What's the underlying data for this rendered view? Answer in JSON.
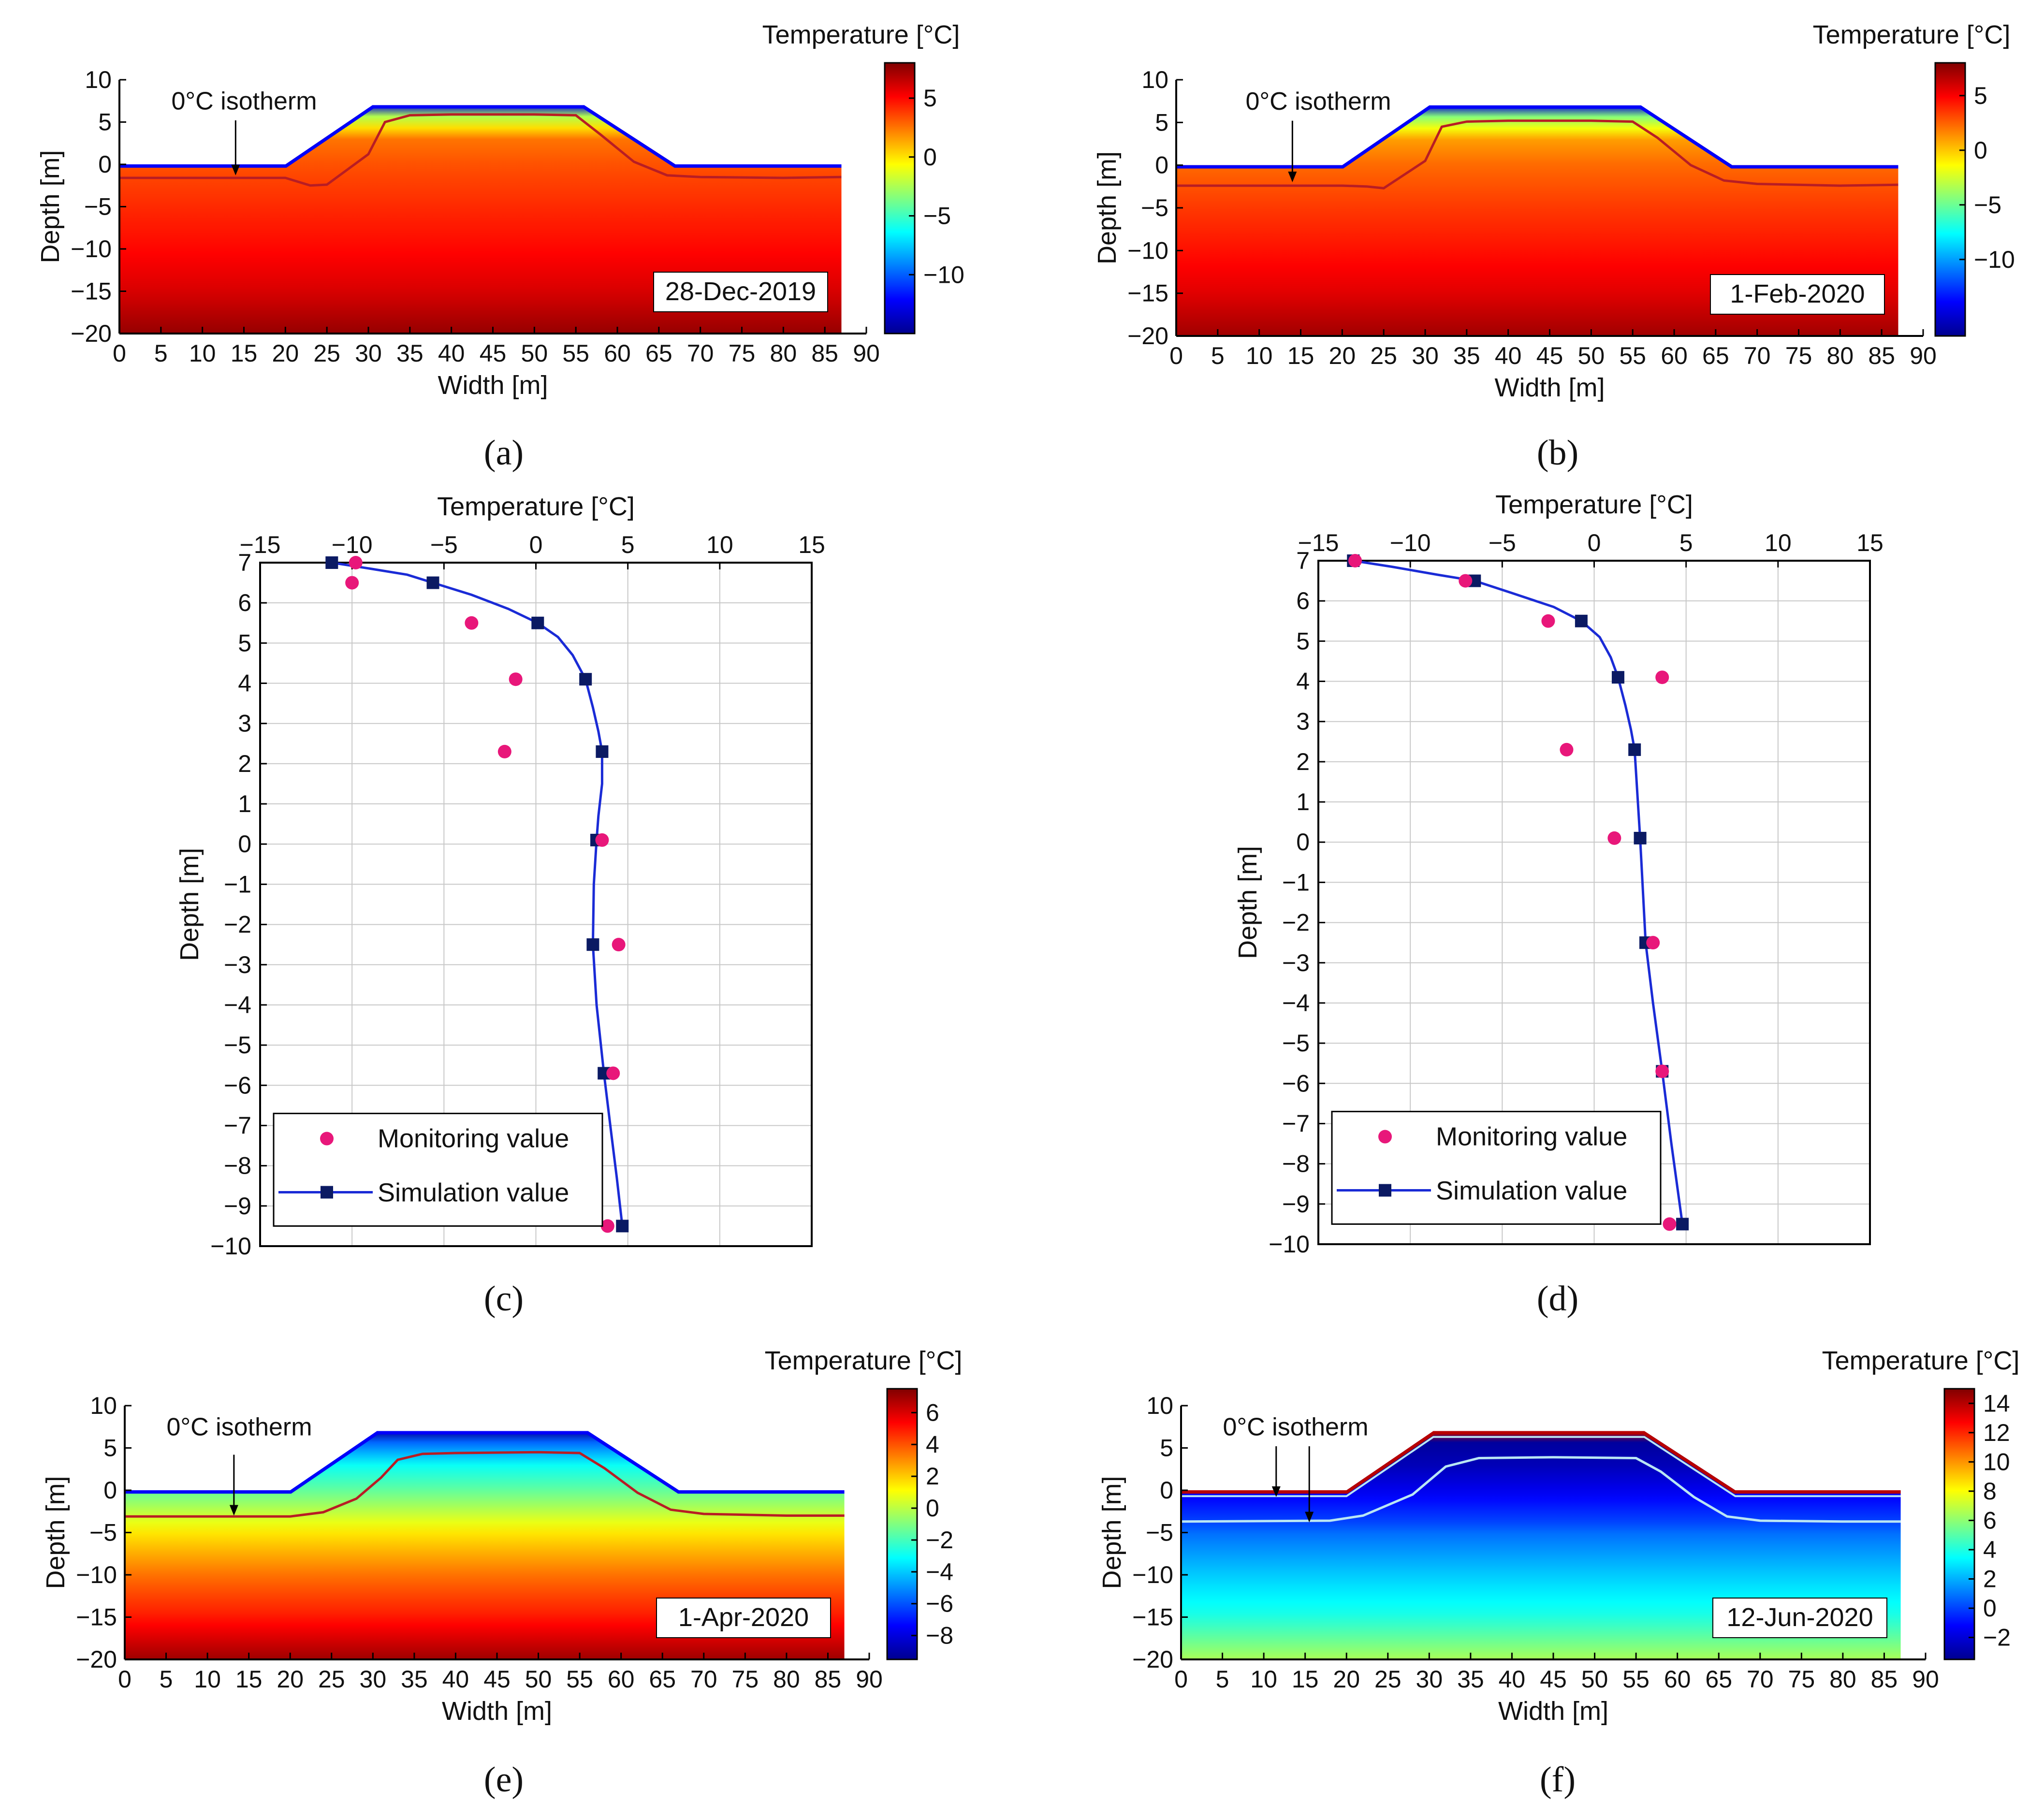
{
  "figure": {
    "panel_labels": [
      "(a)",
      "(b)",
      "(c)",
      "(d)",
      "(e)",
      "(f)"
    ]
  },
  "colors": {
    "monitoring": "#e8177a",
    "simulation_line": "#1a2bd6",
    "simulation_marker": "#0b1a63",
    "isotherm": "#b81d24",
    "isotherm_cold": "#b9e6f4",
    "grid": "#c8c8c8"
  },
  "chart_data": [
    {
      "panel": "a",
      "type": "heatmap",
      "title": "",
      "date_label": "28-Dec-2019",
      "xlabel": "Width [m]",
      "ylabel": "Depth [m]",
      "xlim": [
        0,
        90
      ],
      "ylim": [
        -20,
        10
      ],
      "xticks": [
        0,
        5,
        10,
        15,
        20,
        25,
        30,
        35,
        40,
        45,
        50,
        55,
        60,
        65,
        70,
        75,
        80,
        85,
        90
      ],
      "yticks": [
        10,
        5,
        0,
        -5,
        -10,
        -15,
        -20
      ],
      "colorbar": {
        "label": "Temperature [°C]",
        "min": -15,
        "max": 8,
        "ticks": [
          5,
          0,
          -5,
          -10
        ]
      },
      "annotation": "0°C isotherm",
      "embankment_profile": {
        "x": [
          0,
          20,
          30.5,
          56,
          67,
          87
        ],
        "y": [
          0,
          0,
          7,
          7,
          0,
          0
        ]
      },
      "isotherm": {
        "x": [
          0,
          20,
          23,
          25,
          30,
          32,
          35,
          40,
          50,
          55,
          58,
          62,
          66,
          70,
          80,
          87
        ],
        "y": [
          -1.6,
          -1.6,
          -2.5,
          -2.4,
          1.2,
          5,
          5.8,
          5.9,
          5.9,
          5.8,
          3.5,
          0.3,
          -1.3,
          -1.5,
          -1.6,
          -1.5
        ]
      },
      "temp_profile": {
        "depth": [
          7,
          6,
          3,
          0,
          -5,
          -10,
          -15,
          -20
        ],
        "temp": [
          -13,
          -3,
          2.5,
          3.3,
          4.2,
          5,
          6,
          7.5
        ]
      }
    },
    {
      "panel": "b",
      "type": "heatmap",
      "title": "",
      "date_label": "1-Feb-2020",
      "xlabel": "Width [m]",
      "ylabel": "Depth [m]",
      "xlim": [
        0,
        90
      ],
      "ylim": [
        -20,
        10
      ],
      "xticks": [
        0,
        5,
        10,
        15,
        20,
        25,
        30,
        35,
        40,
        45,
        50,
        55,
        60,
        65,
        70,
        75,
        80,
        85,
        90
      ],
      "yticks": [
        10,
        5,
        0,
        -5,
        -10,
        -15,
        -20
      ],
      "colorbar": {
        "label": "Temperature [°C]",
        "min": -17,
        "max": 8,
        "ticks": [
          5,
          0,
          -5,
          -10
        ]
      },
      "annotation": "0°C isotherm",
      "embankment_profile": {
        "x": [
          0,
          20,
          30.5,
          56,
          67,
          87
        ],
        "y": [
          0,
          0,
          7,
          7,
          0,
          0
        ]
      },
      "isotherm": {
        "x": [
          0,
          20,
          23,
          25,
          30,
          32,
          35,
          40,
          50,
          55,
          58,
          62,
          66,
          70,
          80,
          87
        ],
        "y": [
          -2.4,
          -2.4,
          -2.5,
          -2.7,
          0.5,
          4.5,
          5.1,
          5.2,
          5.2,
          5.1,
          3.2,
          0.0,
          -1.8,
          -2.2,
          -2.4,
          -2.3
        ]
      },
      "temp_profile": {
        "depth": [
          7,
          6,
          3,
          0,
          -5,
          -10,
          -15,
          -20
        ],
        "temp": [
          -15,
          -5,
          1,
          2.3,
          3.5,
          4.5,
          5.6,
          7.2
        ]
      }
    },
    {
      "panel": "c",
      "type": "line",
      "title": "",
      "xlabel": "Temperature [°C]",
      "ylabel": "Depth [m]",
      "xlim": [
        -15,
        15
      ],
      "ylim": [
        -10,
        7
      ],
      "xticks": [
        -15,
        -10,
        -5,
        0,
        5,
        10,
        15
      ],
      "yticks": [
        7,
        6,
        5,
        4,
        3,
        2,
        1,
        0,
        -1,
        -2,
        -3,
        -4,
        -5,
        -6,
        -7,
        -8,
        -9,
        -10
      ],
      "legend_position": "bottom-left",
      "series": [
        {
          "name": "Monitoring value",
          "kind": "scatter",
          "points": [
            [
              -9.8,
              7.0
            ],
            [
              -10.0,
              6.5
            ],
            [
              -3.5,
              5.5
            ],
            [
              -1.1,
              4.1
            ],
            [
              -1.7,
              2.3
            ],
            [
              3.6,
              0.1
            ],
            [
              4.5,
              -2.5
            ],
            [
              4.2,
              -5.7
            ],
            [
              3.9,
              -9.5
            ]
          ]
        },
        {
          "name": "Simulation value",
          "kind": "line-markers",
          "points": [
            [
              -11.1,
              7.0
            ],
            [
              -5.6,
              6.5
            ],
            [
              0.1,
              5.5
            ],
            [
              2.7,
              4.1
            ],
            [
              3.6,
              2.3
            ],
            [
              3.3,
              0.1
            ],
            [
              3.1,
              -2.5
            ],
            [
              3.7,
              -5.7
            ],
            [
              4.7,
              -9.5
            ]
          ],
          "curve": [
            [
              -11.1,
              7.0
            ],
            [
              -9.0,
              6.85
            ],
            [
              -7.0,
              6.7
            ],
            [
              -5.6,
              6.5
            ],
            [
              -3.5,
              6.2
            ],
            [
              -1.5,
              5.85
            ],
            [
              0.1,
              5.5
            ],
            [
              1.2,
              5.15
            ],
            [
              2.0,
              4.7
            ],
            [
              2.7,
              4.1
            ],
            [
              3.1,
              3.4
            ],
            [
              3.4,
              2.8
            ],
            [
              3.6,
              2.3
            ],
            [
              3.6,
              1.5
            ],
            [
              3.4,
              0.7
            ],
            [
              3.3,
              0.1
            ],
            [
              3.15,
              -1.0
            ],
            [
              3.1,
              -2.5
            ],
            [
              3.3,
              -4.0
            ],
            [
              3.7,
              -5.7
            ],
            [
              4.1,
              -7.2
            ],
            [
              4.4,
              -8.3
            ],
            [
              4.7,
              -9.5
            ]
          ]
        }
      ]
    },
    {
      "panel": "d",
      "type": "line",
      "title": "",
      "xlabel": "Temperature [°C]",
      "ylabel": "Depth [m]",
      "xlim": [
        -15,
        15
      ],
      "ylim": [
        -10,
        7
      ],
      "xticks": [
        -15,
        -10,
        -5,
        0,
        5,
        10,
        15
      ],
      "yticks": [
        7,
        6,
        5,
        4,
        3,
        2,
        1,
        0,
        -1,
        -2,
        -3,
        -4,
        -5,
        -6,
        -7,
        -8,
        -9,
        -10
      ],
      "legend_position": "bottom-left",
      "series": [
        {
          "name": "Monitoring value",
          "kind": "scatter",
          "points": [
            [
              -13.0,
              7.0
            ],
            [
              -7.0,
              6.5
            ],
            [
              -2.5,
              5.5
            ],
            [
              3.7,
              4.1
            ],
            [
              -1.5,
              2.3
            ],
            [
              1.1,
              0.1
            ],
            [
              3.2,
              -2.5
            ],
            [
              3.7,
              -5.7
            ],
            [
              4.1,
              -9.5
            ]
          ]
        },
        {
          "name": "Simulation value",
          "kind": "line-markers",
          "points": [
            [
              -13.1,
              7.0
            ],
            [
              -6.5,
              6.5
            ],
            [
              -0.7,
              5.5
            ],
            [
              1.3,
              4.1
            ],
            [
              2.2,
              2.3
            ],
            [
              2.5,
              0.1
            ],
            [
              2.8,
              -2.5
            ],
            [
              3.7,
              -5.7
            ],
            [
              4.8,
              -9.5
            ]
          ],
          "curve": [
            [
              -13.1,
              7.0
            ],
            [
              -11.0,
              6.85
            ],
            [
              -8.5,
              6.65
            ],
            [
              -6.5,
              6.5
            ],
            [
              -4.5,
              6.2
            ],
            [
              -2.2,
              5.85
            ],
            [
              -0.7,
              5.5
            ],
            [
              0.3,
              5.1
            ],
            [
              0.9,
              4.6
            ],
            [
              1.3,
              4.1
            ],
            [
              1.7,
              3.4
            ],
            [
              2.0,
              2.8
            ],
            [
              2.2,
              2.3
            ],
            [
              2.35,
              1.2
            ],
            [
              2.5,
              0.1
            ],
            [
              2.65,
              -1.2
            ],
            [
              2.8,
              -2.5
            ],
            [
              3.2,
              -4.0
            ],
            [
              3.7,
              -5.7
            ],
            [
              4.2,
              -7.5
            ],
            [
              4.8,
              -9.5
            ]
          ]
        }
      ]
    },
    {
      "panel": "e",
      "type": "heatmap",
      "title": "",
      "date_label": "1-Apr-2020",
      "xlabel": "Width [m]",
      "ylabel": "Depth [m]",
      "xlim": [
        0,
        90
      ],
      "ylim": [
        -20,
        10
      ],
      "xticks": [
        0,
        5,
        10,
        15,
        20,
        25,
        30,
        35,
        40,
        45,
        50,
        55,
        60,
        65,
        70,
        75,
        80,
        85,
        90
      ],
      "yticks": [
        10,
        5,
        0,
        -5,
        -10,
        -15,
        -20
      ],
      "colorbar": {
        "label": "Temperature [°C]",
        "min": -9.5,
        "max": 7.5,
        "ticks": [
          6,
          4,
          2,
          0,
          -2,
          -4,
          -6,
          -8
        ]
      },
      "annotation": "0°C isotherm",
      "embankment_profile": {
        "x": [
          0,
          20,
          30.5,
          56,
          67,
          87
        ],
        "y": [
          0,
          0,
          7,
          7,
          0,
          0
        ]
      },
      "isotherm": {
        "x": [
          0,
          20,
          24,
          28,
          31,
          33,
          36,
          40,
          50,
          55,
          58,
          62,
          66,
          70,
          80,
          87
        ],
        "y": [
          -3.1,
          -3.1,
          -2.6,
          -1.0,
          1.5,
          3.6,
          4.3,
          4.4,
          4.5,
          4.4,
          2.6,
          -0.3,
          -2.3,
          -2.8,
          -3.0,
          -3.0
        ]
      },
      "temp_profile": {
        "depth": [
          7,
          6,
          3,
          0,
          -5,
          -10,
          -15,
          -20
        ],
        "temp": [
          -9,
          -6,
          -3,
          -1.5,
          1.5,
          3.5,
          5,
          7
        ]
      }
    },
    {
      "panel": "f",
      "type": "heatmap",
      "title": "",
      "date_label": "12-Jun-2020",
      "xlabel": "Width [m]",
      "ylabel": "Depth [m]",
      "xlim": [
        0,
        90
      ],
      "ylim": [
        -20,
        10
      ],
      "xticks": [
        0,
        5,
        10,
        15,
        20,
        25,
        30,
        35,
        40,
        45,
        50,
        55,
        60,
        65,
        70,
        75,
        80,
        85,
        90
      ],
      "yticks": [
        10,
        5,
        0,
        -5,
        -10,
        -15,
        -20
      ],
      "colorbar": {
        "label": "Temperature [°C]",
        "min": -3.5,
        "max": 15,
        "ticks": [
          14,
          12,
          10,
          8,
          6,
          4,
          2,
          0,
          -2
        ]
      },
      "annotation": "0°C isotherm",
      "embankment_profile": {
        "x": [
          0,
          20,
          30.5,
          56,
          67,
          87
        ],
        "y": [
          0,
          0,
          7,
          7,
          0,
          0
        ]
      },
      "isotherm": {
        "x": [
          0,
          18,
          22,
          28,
          32,
          36,
          45,
          55,
          58,
          62,
          66,
          70,
          80,
          87
        ],
        "y": [
          -3.7,
          -3.6,
          -3.0,
          -0.5,
          2.8,
          3.8,
          3.9,
          3.8,
          2.2,
          -0.8,
          -3.1,
          -3.6,
          -3.7,
          -3.7
        ]
      },
      "thaw_line": {
        "x": [
          0,
          20,
          30.5,
          56,
          67,
          87
        ],
        "y": [
          -0.7,
          -0.7,
          6.3,
          6.3,
          -0.7,
          -0.7
        ]
      },
      "temp_profile": {
        "depth": [
          7,
          6.5,
          5.8,
          3,
          0,
          -3.7,
          -5,
          -10,
          -15,
          -20
        ],
        "temp": [
          14,
          4,
          -3,
          -2.5,
          -1.5,
          0,
          0.8,
          2.5,
          4,
          6.5
        ]
      }
    }
  ]
}
